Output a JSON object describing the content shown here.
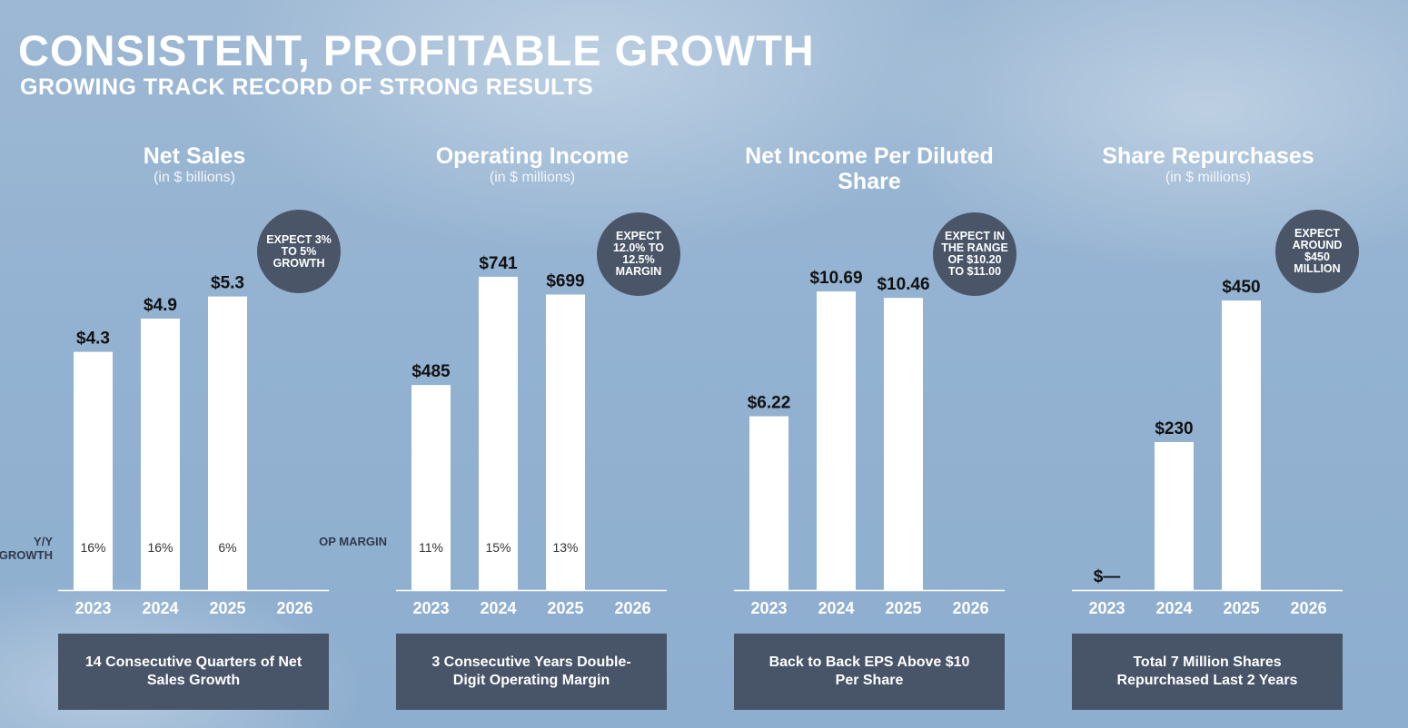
{
  "header": {
    "title": "CONSISTENT, PROFITABLE GROWTH",
    "subtitle": "GROWING TRACK RECORD OF STRONG RESULTS"
  },
  "colors": {
    "bar": "#ffffff",
    "badge": "#4a5568",
    "footer": "#485467"
  },
  "panels": [
    {
      "title": "Net Sales",
      "unit": "(in $ billions)",
      "rate_label": "Y/Y GROWTH",
      "badge": "EXPECT 3% TO 5% GROWTH",
      "footer": "14 Consecutive Quarters of Net Sales Growth"
    },
    {
      "title": "Operating Income",
      "unit": "(in $ millions)",
      "rate_label": "OP MARGIN",
      "badge": "EXPECT 12.0% TO 12.5% MARGIN",
      "footer": "3 Consecutive Years Double-Digit Operating Margin"
    },
    {
      "title": "Net Income Per Diluted Share",
      "unit": "",
      "rate_label": "",
      "badge": "EXPECT IN THE RANGE OF $10.20 TO $11.00",
      "footer": "Back to Back EPS Above $10 Per Share"
    },
    {
      "title": "Share Repurchases",
      "unit": "(in $ millions)",
      "rate_label": "",
      "badge": "EXPECT AROUND $450 MILLION",
      "footer": "Total 7 Million Shares Repurchased Last 2 Years"
    }
  ],
  "chart_data": [
    {
      "type": "bar",
      "title": "Net Sales",
      "categories": [
        "2023",
        "2024",
        "2025",
        "2026"
      ],
      "values": [
        4.3,
        4.9,
        5.3,
        null
      ],
      "value_labels": [
        "$4.3",
        "$4.9",
        "$5.3",
        ""
      ],
      "rate_labels": [
        "16%",
        "16%",
        "6%",
        ""
      ],
      "ylim": [
        0,
        5.9
      ]
    },
    {
      "type": "bar",
      "title": "Operating Income",
      "categories": [
        "2023",
        "2024",
        "2025",
        "2026"
      ],
      "values": [
        485,
        741,
        699,
        null
      ],
      "value_labels": [
        "$485",
        "$741",
        "$699",
        ""
      ],
      "rate_labels": [
        "11%",
        "15%",
        "13%",
        ""
      ],
      "ylim": [
        0,
        773
      ]
    },
    {
      "type": "bar",
      "title": "Net Income Per Diluted Share",
      "categories": [
        "2023",
        "2024",
        "2025",
        "2026"
      ],
      "values": [
        6.22,
        10.69,
        10.46,
        null
      ],
      "value_labels": [
        "$6.22",
        "$10.69",
        "$10.46",
        ""
      ],
      "rate_labels": [
        "",
        "",
        "",
        ""
      ],
      "ylim": [
        0,
        11.7
      ]
    },
    {
      "type": "bar",
      "title": "Share Repurchases",
      "categories": [
        "2023",
        "2024",
        "2025",
        "2026"
      ],
      "values": [
        0,
        230,
        450,
        null
      ],
      "value_labels": [
        "$—",
        "$230",
        "$450",
        ""
      ],
      "rate_labels": [
        "",
        "",
        "",
        ""
      ],
      "ylim": [
        0,
        508
      ]
    }
  ]
}
